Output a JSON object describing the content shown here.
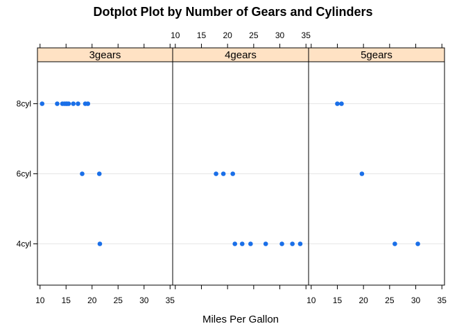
{
  "chart_data": {
    "type": "scatter",
    "title": "Dotplot Plot by Number of Gears and Cylinders",
    "xlabel": "Miles Per Gallon",
    "ylabel": "",
    "xlim": [
      9.5,
      35.5
    ],
    "x_ticks": [
      10,
      15,
      20,
      25,
      30,
      35
    ],
    "categories": [
      "4cyl",
      "6cyl",
      "8cyl"
    ],
    "panels": [
      {
        "name": "3gears",
        "series": [
          {
            "category": "8cyl",
            "values": [
              10.4,
              13.3,
              14.3,
              14.7,
              15.0,
              15.2,
              15.5,
              16.4,
              17.3,
              18.7,
              19.2
            ]
          },
          {
            "category": "6cyl",
            "values": [
              18.1,
              21.4
            ]
          },
          {
            "category": "4cyl",
            "values": [
              21.5
            ]
          }
        ]
      },
      {
        "name": "4gears",
        "series": [
          {
            "category": "8cyl",
            "values": []
          },
          {
            "category": "6cyl",
            "values": [
              17.8,
              19.2,
              21.0
            ]
          },
          {
            "category": "4cyl",
            "values": [
              21.4,
              22.8,
              24.4,
              27.3,
              30.4,
              32.4,
              33.9
            ]
          }
        ]
      },
      {
        "name": "5gears",
        "series": [
          {
            "category": "8cyl",
            "values": [
              15.0,
              15.8
            ]
          },
          {
            "category": "6cyl",
            "values": [
              19.7
            ]
          },
          {
            "category": "4cyl",
            "values": [
              26.0,
              30.4
            ]
          }
        ]
      }
    ],
    "grid": true,
    "colors": {
      "points": "#1a6fe8",
      "strip_background": "#ffe2c4",
      "gridline": "#e6e6e6",
      "frame": "#000000"
    }
  }
}
